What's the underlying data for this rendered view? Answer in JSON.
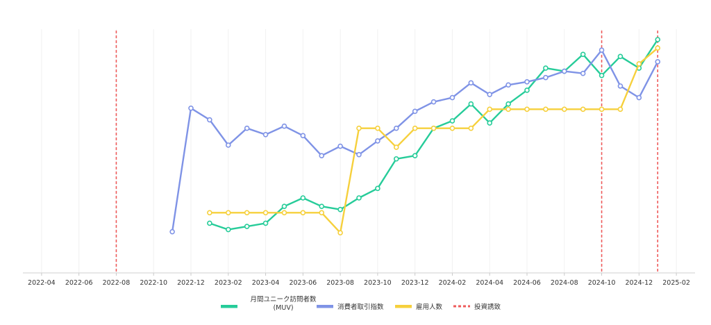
{
  "chart_data": {
    "type": "line",
    "x_axis": {
      "type": "date",
      "min": "2022-03",
      "max": "2025-03",
      "ticks": [
        "2022-04",
        "2022-06",
        "2022-08",
        "2022-10",
        "2022-12",
        "2023-02",
        "2023-04",
        "2023-06",
        "2023-08",
        "2023-10",
        "2023-12",
        "2024-02",
        "2024-04",
        "2024-06",
        "2024-08",
        "2024-10",
        "2024-12",
        "2025-02"
      ]
    },
    "y_axis": {
      "visible": false,
      "min": 0,
      "max": 100
    },
    "grid": {
      "vertical": true,
      "horizontal": false
    },
    "legend": {
      "position": "bottom"
    },
    "series": [
      {
        "name": "月間ユニーク訪問者数\n(MUV)",
        "color": "#26cc99",
        "x": [
          "2023-01",
          "2023-02",
          "2023-03",
          "2023-04",
          "2023-05",
          "2023-06",
          "2023-07",
          "2023-08",
          "2023-09",
          "2023-10",
          "2023-11",
          "2023-12",
          "2024-01",
          "2024-02",
          "2024-03",
          "2024-04",
          "2024-05",
          "2024-06",
          "2024-07",
          "2024-08",
          "2024-09",
          "2024-10",
          "2024-11",
          "2024-12",
          "2025-01"
        ],
        "y": [
          13,
          10,
          11.5,
          13,
          21,
          25,
          21,
          19.5,
          25,
          29.5,
          43.5,
          45,
          58,
          61.5,
          69.5,
          60.5,
          69.5,
          76,
          86.5,
          85,
          93,
          83,
          92,
          86.5,
          100
        ]
      },
      {
        "name": "消費者取引指数",
        "color": "#7f93e6",
        "x": [
          "2022-11",
          "2022-12",
          "2023-01",
          "2023-02",
          "2023-03",
          "2023-04",
          "2023-05",
          "2023-06",
          "2023-07",
          "2023-08",
          "2023-09",
          "2023-10",
          "2023-11",
          "2023-12",
          "2024-01",
          "2024-02",
          "2024-03",
          "2024-04",
          "2024-05",
          "2024-06",
          "2024-07",
          "2024-08",
          "2024-09",
          "2024-10",
          "2024-11",
          "2024-12",
          "2025-01"
        ],
        "y": [
          9,
          67.5,
          62,
          50,
          58,
          55,
          59,
          54.5,
          45,
          49.5,
          45.5,
          52,
          58,
          66,
          70.5,
          72.5,
          79.5,
          74,
          78.5,
          80,
          82,
          85,
          84,
          95,
          78,
          72.5,
          89.5
        ]
      },
      {
        "name": "雇用人数",
        "color": "#f6d03c",
        "x": [
          "2023-01",
          "2023-02",
          "2023-03",
          "2023-04",
          "2023-05",
          "2023-06",
          "2023-07",
          "2023-08",
          "2023-09",
          "2023-10",
          "2023-11",
          "2023-12",
          "2024-01",
          "2024-02",
          "2024-03",
          "2024-04",
          "2024-05",
          "2024-06",
          "2024-07",
          "2024-08",
          "2024-09",
          "2024-10",
          "2024-11",
          "2024-12",
          "2025-01"
        ],
        "y": [
          18,
          18,
          18,
          18,
          18,
          18,
          18,
          8.5,
          58,
          58,
          49,
          58,
          58,
          58,
          58,
          67,
          67,
          67,
          67,
          67,
          67,
          67,
          67,
          88.5,
          96
        ]
      }
    ],
    "vertical_markers": {
      "name": "投資誘致",
      "color": "#ee5a5a",
      "dates": [
        "2022-08",
        "2024-10",
        "2025-01"
      ]
    }
  }
}
